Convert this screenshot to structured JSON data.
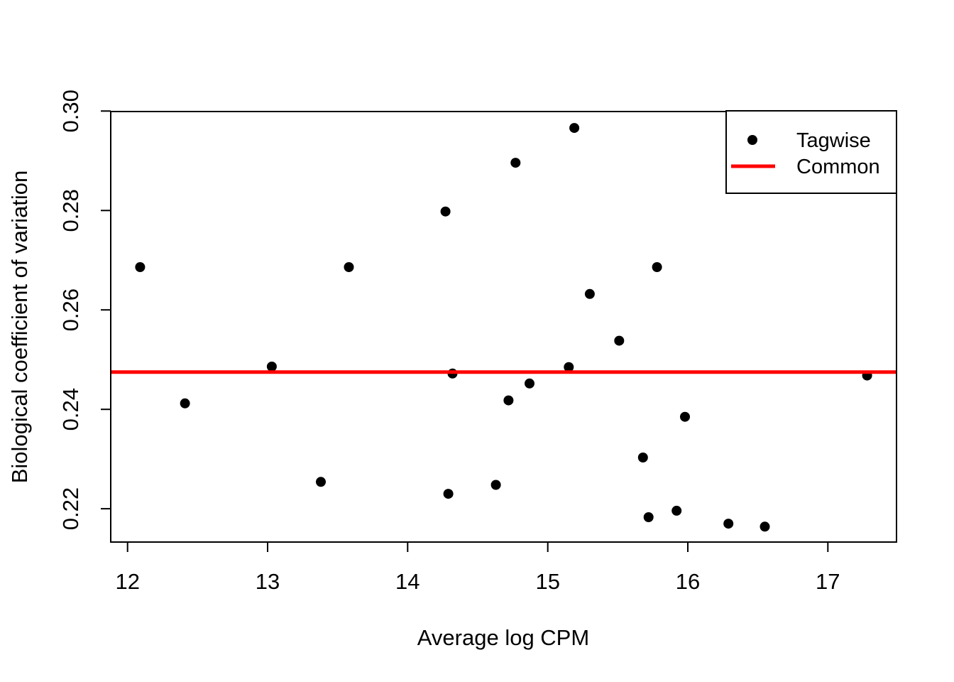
{
  "chart_data": {
    "type": "scatter",
    "title": "",
    "xlabel": "Average log CPM",
    "ylabel": "Biological coefficient of variation",
    "xlim": [
      11.88,
      17.49
    ],
    "ylim": [
      0.2133,
      0.2999
    ],
    "grid": false,
    "x_ticks": {
      "values": [
        12,
        13,
        14,
        15,
        16,
        17
      ],
      "labels": [
        "12",
        "13",
        "14",
        "15",
        "16",
        "17"
      ]
    },
    "y_ticks": {
      "values": [
        0.22,
        0.24,
        0.26,
        0.28,
        0.3
      ],
      "labels": [
        "0.22",
        "0.24",
        "0.26",
        "0.28",
        "0.30"
      ]
    },
    "series": [
      {
        "name": "Tagwise",
        "type": "points",
        "marker": "filled-circle",
        "color": "#000000",
        "points": [
          [
            12.09,
            0.2686
          ],
          [
            12.41,
            0.2412
          ],
          [
            13.03,
            0.2486
          ],
          [
            13.38,
            0.2254
          ],
          [
            13.58,
            0.2686
          ],
          [
            14.27,
            0.2798
          ],
          [
            14.29,
            0.223
          ],
          [
            14.32,
            0.2472
          ],
          [
            14.63,
            0.2248
          ],
          [
            14.72,
            0.2418
          ],
          [
            14.77,
            0.2896
          ],
          [
            14.87,
            0.2452
          ],
          [
            15.15,
            0.2485
          ],
          [
            15.19,
            0.2966
          ],
          [
            15.3,
            0.2632
          ],
          [
            15.51,
            0.2538
          ],
          [
            15.68,
            0.2303
          ],
          [
            15.72,
            0.2183
          ],
          [
            15.78,
            0.2686
          ],
          [
            15.92,
            0.2196
          ],
          [
            15.98,
            0.2385
          ],
          [
            16.29,
            0.217
          ],
          [
            16.55,
            0.2164
          ],
          [
            17.28,
            0.2468
          ]
        ]
      },
      {
        "name": "Common",
        "type": "hline",
        "color": "#FF0000",
        "value": 0.2475
      }
    ],
    "legend_position": "topright",
    "legend": [
      {
        "label": "Tagwise",
        "marker": "point",
        "color": "#000000"
      },
      {
        "label": "Common",
        "marker": "line",
        "color": "#FF0000"
      }
    ],
    "colors": {
      "points": "#000000",
      "common_line": "#FF0000",
      "frame": "#000000",
      "background": "#FFFFFF"
    }
  }
}
